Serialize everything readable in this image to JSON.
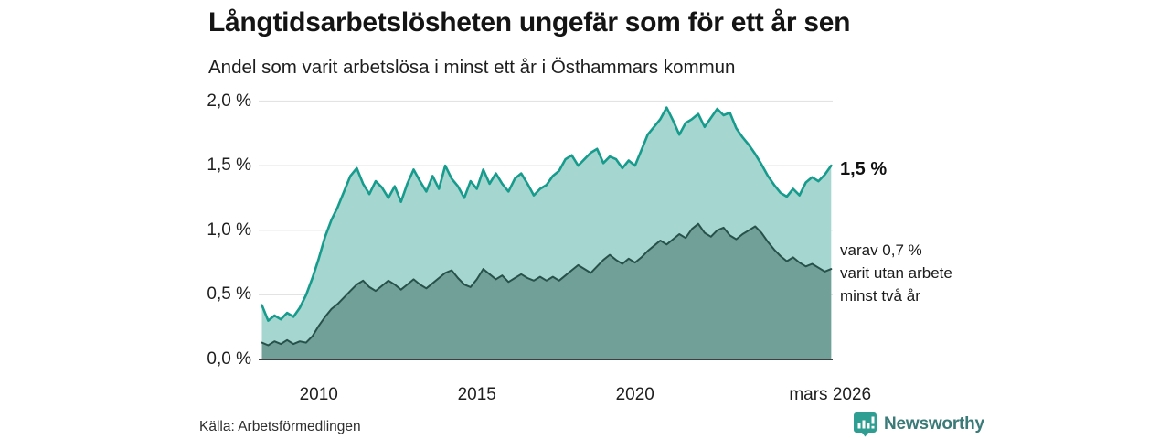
{
  "chart_data": {
    "type": "area",
    "title": "Långtidsarbetslösheten ungefär som för ett år sen",
    "subtitle": "Andel som varit arbetslösa i minst ett år i Östhammars kommun",
    "x_start": 2008.2,
    "x_step": 0.2,
    "x_axis_range": [
      2008.1,
      2026.25
    ],
    "ylim": [
      0,
      2
    ],
    "grid": "horizontal",
    "legend": "none",
    "y_ticks": [
      {
        "value": 0.0,
        "label": "0,0 %"
      },
      {
        "value": 0.5,
        "label": "0,5 %"
      },
      {
        "value": 1.0,
        "label": "1,0 %"
      },
      {
        "value": 1.5,
        "label": "1,5 %"
      },
      {
        "value": 2.0,
        "label": "2,0 %"
      }
    ],
    "x_ticks": [
      {
        "year": 2010,
        "label": "2010"
      },
      {
        "year": 2015,
        "label": "2015"
      },
      {
        "year": 2020,
        "label": "2020"
      },
      {
        "year": 2026.17,
        "label": "mars 2026"
      }
    ],
    "series": [
      {
        "name": "Andel arbetslösa minst ett år",
        "line_color": "#169b8d",
        "fill_color": "#a5d6cf",
        "end_value_pct": 1.5,
        "values": [
          0.42,
          0.3,
          0.34,
          0.31,
          0.36,
          0.33,
          0.4,
          0.5,
          0.63,
          0.78,
          0.95,
          1.08,
          1.18,
          1.3,
          1.42,
          1.48,
          1.36,
          1.28,
          1.38,
          1.33,
          1.25,
          1.34,
          1.22,
          1.36,
          1.47,
          1.38,
          1.3,
          1.42,
          1.32,
          1.5,
          1.4,
          1.34,
          1.25,
          1.38,
          1.32,
          1.47,
          1.36,
          1.44,
          1.36,
          1.3,
          1.4,
          1.44,
          1.36,
          1.27,
          1.32,
          1.35,
          1.42,
          1.46,
          1.55,
          1.58,
          1.5,
          1.55,
          1.6,
          1.63,
          1.52,
          1.57,
          1.55,
          1.48,
          1.54,
          1.5,
          1.62,
          1.74,
          1.8,
          1.86,
          1.95,
          1.85,
          1.74,
          1.83,
          1.86,
          1.9,
          1.8,
          1.87,
          1.94,
          1.89,
          1.91,
          1.79,
          1.72,
          1.66,
          1.59,
          1.51,
          1.42,
          1.35,
          1.29,
          1.26,
          1.32,
          1.27,
          1.37,
          1.41,
          1.38,
          1.43,
          1.5
        ]
      },
      {
        "name": "varav utan arbete minst två år",
        "line_color": "#27514b",
        "fill_color": "#70a098",
        "end_value_pct": 0.7,
        "values": [
          0.13,
          0.11,
          0.14,
          0.12,
          0.15,
          0.12,
          0.14,
          0.13,
          0.18,
          0.26,
          0.33,
          0.39,
          0.43,
          0.48,
          0.53,
          0.58,
          0.61,
          0.56,
          0.53,
          0.57,
          0.61,
          0.58,
          0.54,
          0.58,
          0.62,
          0.58,
          0.55,
          0.59,
          0.63,
          0.67,
          0.69,
          0.63,
          0.58,
          0.56,
          0.62,
          0.7,
          0.66,
          0.62,
          0.65,
          0.6,
          0.63,
          0.66,
          0.63,
          0.61,
          0.64,
          0.61,
          0.64,
          0.61,
          0.65,
          0.69,
          0.73,
          0.7,
          0.67,
          0.72,
          0.77,
          0.81,
          0.77,
          0.74,
          0.78,
          0.75,
          0.79,
          0.84,
          0.88,
          0.92,
          0.89,
          0.93,
          0.97,
          0.94,
          1.01,
          1.05,
          0.98,
          0.95,
          1.0,
          1.02,
          0.96,
          0.93,
          0.97,
          1.0,
          1.03,
          0.98,
          0.91,
          0.85,
          0.8,
          0.76,
          0.79,
          0.75,
          0.72,
          0.74,
          0.71,
          0.68,
          0.7
        ]
      }
    ],
    "annotations": {
      "end_value_label": "1,5 %",
      "note_lines": [
        "varav 0,7 %",
        "varit utan arbete",
        "minst två år"
      ]
    }
  },
  "source": {
    "label": "Källa: Arbetsförmedlingen"
  },
  "branding": {
    "name": "Newsworthy",
    "icon": "bar-chart-bubble-icon",
    "icon_color": "#2f9e92",
    "text_color": "#3a7a78"
  }
}
